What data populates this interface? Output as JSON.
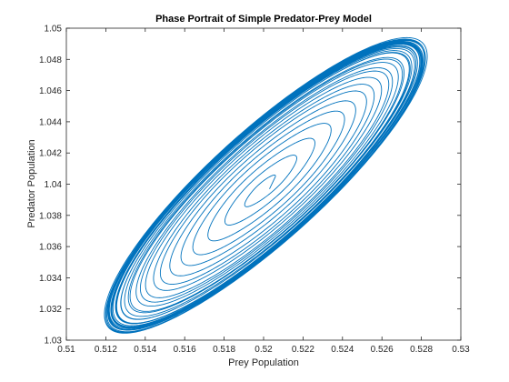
{
  "chart_data": {
    "type": "line",
    "title": "Phase Portrait of Simple Predator-Prey Model",
    "xlabel": "Prey Population",
    "ylabel": "Predator Population",
    "xlim": [
      0.51,
      0.53
    ],
    "ylim": [
      1.03,
      1.05
    ],
    "xticks": [
      0.51,
      0.512,
      0.514,
      0.516,
      0.518,
      0.52,
      0.522,
      0.524,
      0.526,
      0.528,
      0.53
    ],
    "xtick_labels": [
      "0.51",
      "0.512",
      "0.514",
      "0.516",
      "0.518",
      "0.52",
      "0.522",
      "0.524",
      "0.526",
      "0.528",
      "0.53"
    ],
    "yticks": [
      1.03,
      1.032,
      1.034,
      1.036,
      1.038,
      1.04,
      1.042,
      1.044,
      1.046,
      1.048,
      1.05
    ],
    "ytick_labels": [
      "1.03",
      "1.032",
      "1.034",
      "1.036",
      "1.038",
      "1.04",
      "1.042",
      "1.044",
      "1.046",
      "1.048",
      "1.05"
    ],
    "grid": false,
    "line_color": "#0072BD",
    "series": [
      {
        "trajectory": {
          "start": [
            0.5203,
            1.0397
          ],
          "center": [
            0.5201,
            1.0399
          ],
          "semi_axis_major": 0.0106,
          "semi_axis_minor": 0.0035,
          "tilt_degrees": 42,
          "initial_amplitude": 0.06,
          "limit_amplitude": 1.0,
          "turns": 34
        }
      }
    ]
  }
}
